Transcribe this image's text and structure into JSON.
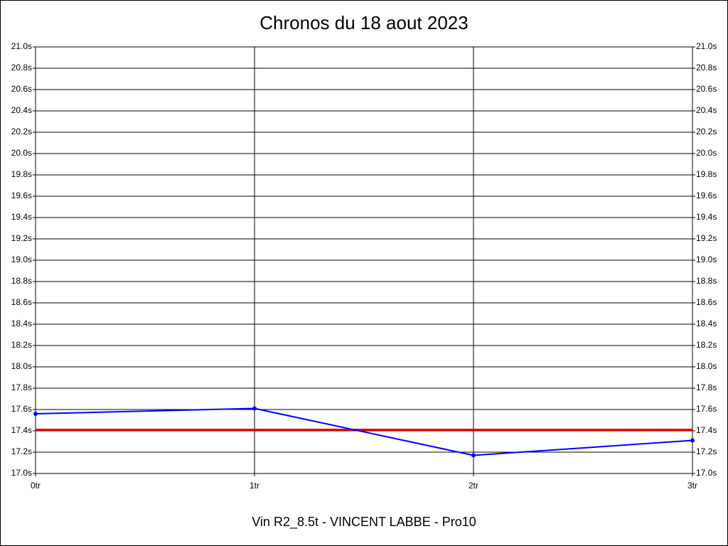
{
  "chart_data": {
    "type": "line",
    "title": "Chronos du 18 aout 2023",
    "xlabel": "Vin R2_8.5t - VINCENT LABBE - Pro10",
    "x": [
      0,
      1,
      2,
      3
    ],
    "xlim": [
      0,
      3
    ],
    "xticks": [
      {
        "value": 0,
        "label": "0tr"
      },
      {
        "value": 1,
        "label": "1tr"
      },
      {
        "value": 2,
        "label": "2tr"
      },
      {
        "value": 3,
        "label": "3tr"
      }
    ],
    "ylim": [
      17.0,
      21.0
    ],
    "yticks": [
      {
        "value": 17.0,
        "label": "17.0s"
      },
      {
        "value": 17.2,
        "label": "17.2s"
      },
      {
        "value": 17.4,
        "label": "17.4s"
      },
      {
        "value": 17.6,
        "label": "17.6s"
      },
      {
        "value": 17.8,
        "label": "17.8s"
      },
      {
        "value": 18.0,
        "label": "18.0s"
      },
      {
        "value": 18.2,
        "label": "18.2s"
      },
      {
        "value": 18.4,
        "label": "18.4s"
      },
      {
        "value": 18.6,
        "label": "18.6s"
      },
      {
        "value": 18.8,
        "label": "18.8s"
      },
      {
        "value": 19.0,
        "label": "19.0s"
      },
      {
        "value": 19.2,
        "label": "19.2s"
      },
      {
        "value": 19.4,
        "label": "19.4s"
      },
      {
        "value": 19.6,
        "label": "19.6s"
      },
      {
        "value": 19.8,
        "label": "19.8s"
      },
      {
        "value": 20.0,
        "label": "20.0s"
      },
      {
        "value": 20.2,
        "label": "20.2s"
      },
      {
        "value": 20.4,
        "label": "20.4s"
      },
      {
        "value": 20.6,
        "label": "20.6s"
      },
      {
        "value": 20.8,
        "label": "20.8s"
      },
      {
        "value": 21.0,
        "label": "21.0s"
      }
    ],
    "grid": true,
    "series": [
      {
        "color": "#0000ff",
        "values": [
          17.56,
          17.61,
          17.17,
          17.31
        ]
      }
    ],
    "hlines": [
      {
        "value": 17.41,
        "color": "#e00000"
      }
    ]
  }
}
